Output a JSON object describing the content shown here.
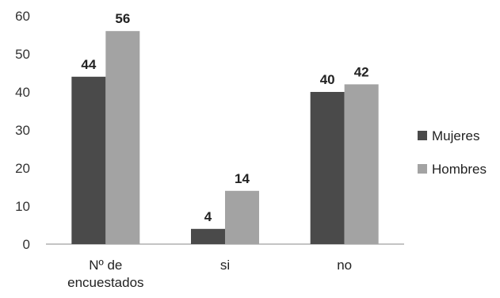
{
  "chart_data": {
    "type": "bar",
    "categories": [
      [
        "Nº de",
        "encuestados"
      ],
      [
        "si"
      ],
      [
        "no"
      ]
    ],
    "series": [
      {
        "name": "Mujeres",
        "values": [
          44,
          4,
          40
        ],
        "color": "#4a4a4a"
      },
      {
        "name": "Hombres",
        "values": [
          56,
          14,
          42
        ],
        "color": "#a3a3a3"
      }
    ],
    "ylim": [
      0,
      60
    ],
    "yticks": [
      0,
      10,
      20,
      30,
      40,
      50,
      60
    ],
    "grid": false,
    "legend": "right",
    "title": "",
    "xlabel": "",
    "ylabel": ""
  }
}
